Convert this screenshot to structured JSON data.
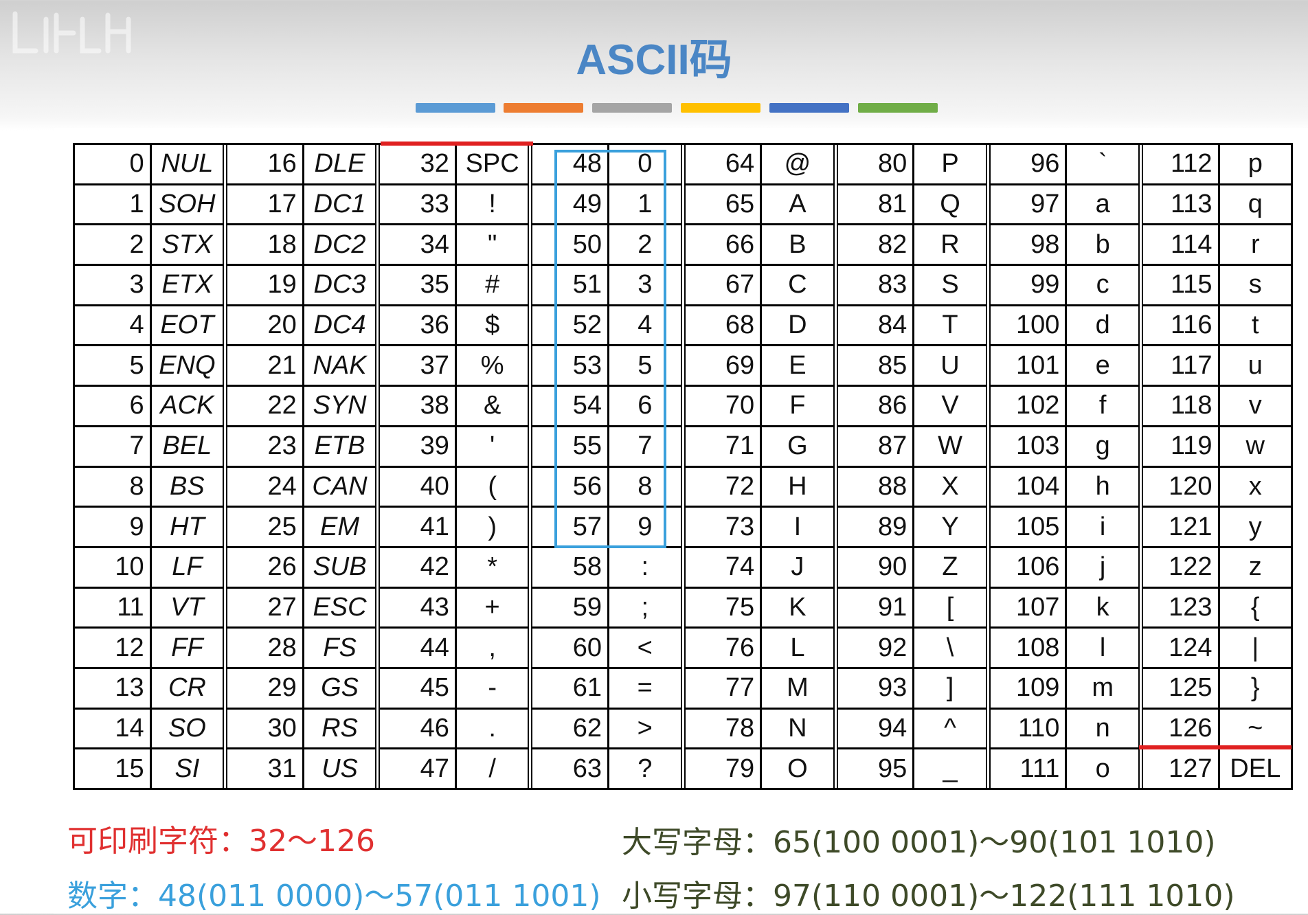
{
  "title": "ASCII码",
  "color_strip": [
    "#5b9bd5",
    "#ed7d31",
    "#a5a5a5",
    "#ffc000",
    "#4472c4",
    "#70ad47"
  ],
  "table": {
    "groups": [
      {
        "control": true,
        "codes": [
          "0",
          "1",
          "2",
          "3",
          "4",
          "5",
          "6",
          "7",
          "8",
          "9",
          "10",
          "11",
          "12",
          "13",
          "14",
          "15"
        ],
        "symbols": [
          "NUL",
          "SOH",
          "STX",
          "ETX",
          "EOT",
          "ENQ",
          "ACK",
          "BEL",
          "BS",
          "HT",
          "LF",
          "VT",
          "FF",
          "CR",
          "SO",
          "SI"
        ]
      },
      {
        "control": true,
        "codes": [
          "16",
          "17",
          "18",
          "19",
          "20",
          "21",
          "22",
          "23",
          "24",
          "25",
          "26",
          "27",
          "28",
          "29",
          "30",
          "31"
        ],
        "symbols": [
          "DLE",
          "DC1",
          "DC2",
          "DC3",
          "DC4",
          "NAK",
          "SYN",
          "ETB",
          "CAN",
          "EM",
          "SUB",
          "ESC",
          "FS",
          "GS",
          "RS",
          "US"
        ]
      },
      {
        "control": false,
        "codes": [
          "32",
          "33",
          "34",
          "35",
          "36",
          "37",
          "38",
          "39",
          "40",
          "41",
          "42",
          "43",
          "44",
          "45",
          "46",
          "47"
        ],
        "symbols": [
          "SPC",
          "!",
          "\"",
          "#",
          "$",
          "%",
          "&",
          "'",
          "(",
          ")",
          "*",
          "+",
          ",",
          "-",
          ".",
          "/"
        ]
      },
      {
        "control": false,
        "codes": [
          "48",
          "49",
          "50",
          "51",
          "52",
          "53",
          "54",
          "55",
          "56",
          "57",
          "58",
          "59",
          "60",
          "61",
          "62",
          "63"
        ],
        "symbols": [
          "0",
          "1",
          "2",
          "3",
          "4",
          "5",
          "6",
          "7",
          "8",
          "9",
          ":",
          ";",
          "<",
          "=",
          ">",
          "?"
        ]
      },
      {
        "control": false,
        "codes": [
          "64",
          "65",
          "66",
          "67",
          "68",
          "69",
          "70",
          "71",
          "72",
          "73",
          "74",
          "75",
          "76",
          "77",
          "78",
          "79"
        ],
        "symbols": [
          "@",
          "A",
          "B",
          "C",
          "D",
          "E",
          "F",
          "G",
          "H",
          "I",
          "J",
          "K",
          "L",
          "M",
          "N",
          "O"
        ]
      },
      {
        "control": false,
        "codes": [
          "80",
          "81",
          "82",
          "83",
          "84",
          "85",
          "86",
          "87",
          "88",
          "89",
          "90",
          "91",
          "92",
          "93",
          "94",
          "95"
        ],
        "symbols": [
          "P",
          "Q",
          "R",
          "S",
          "T",
          "U",
          "V",
          "W",
          "X",
          "Y",
          "Z",
          "[",
          "\\",
          "]",
          "^",
          "_"
        ]
      },
      {
        "control": false,
        "codes": [
          "96",
          "97",
          "98",
          "99",
          "100",
          "101",
          "102",
          "103",
          "104",
          "105",
          "106",
          "107",
          "108",
          "109",
          "110",
          "111"
        ],
        "symbols": [
          "`",
          "a",
          "b",
          "c",
          "d",
          "e",
          "f",
          "g",
          "h",
          "i",
          "j",
          "k",
          "l",
          "m",
          "n",
          "o"
        ]
      },
      {
        "control": false,
        "codes": [
          "112",
          "113",
          "114",
          "115",
          "116",
          "117",
          "118",
          "119",
          "120",
          "121",
          "122",
          "123",
          "124",
          "125",
          "126",
          "127"
        ],
        "symbols": [
          "p",
          "q",
          "r",
          "s",
          "t",
          "u",
          "v",
          "w",
          "x",
          "y",
          "z",
          "{",
          "|",
          "}",
          "~",
          "DEL"
        ]
      }
    ]
  },
  "notes": {
    "printable": {
      "label": "可印刷字符：",
      "value": "32～126"
    },
    "digits": {
      "label": "数字：",
      "value": "48(011 0000)～57(011 1001)"
    },
    "uppercase": {
      "label": "大写字母：",
      "value": "65(100 0001)～90(101 1010)"
    },
    "lowercase": {
      "label": "小写字母：",
      "value": "97(110 0001)～122(111 1010)"
    }
  }
}
